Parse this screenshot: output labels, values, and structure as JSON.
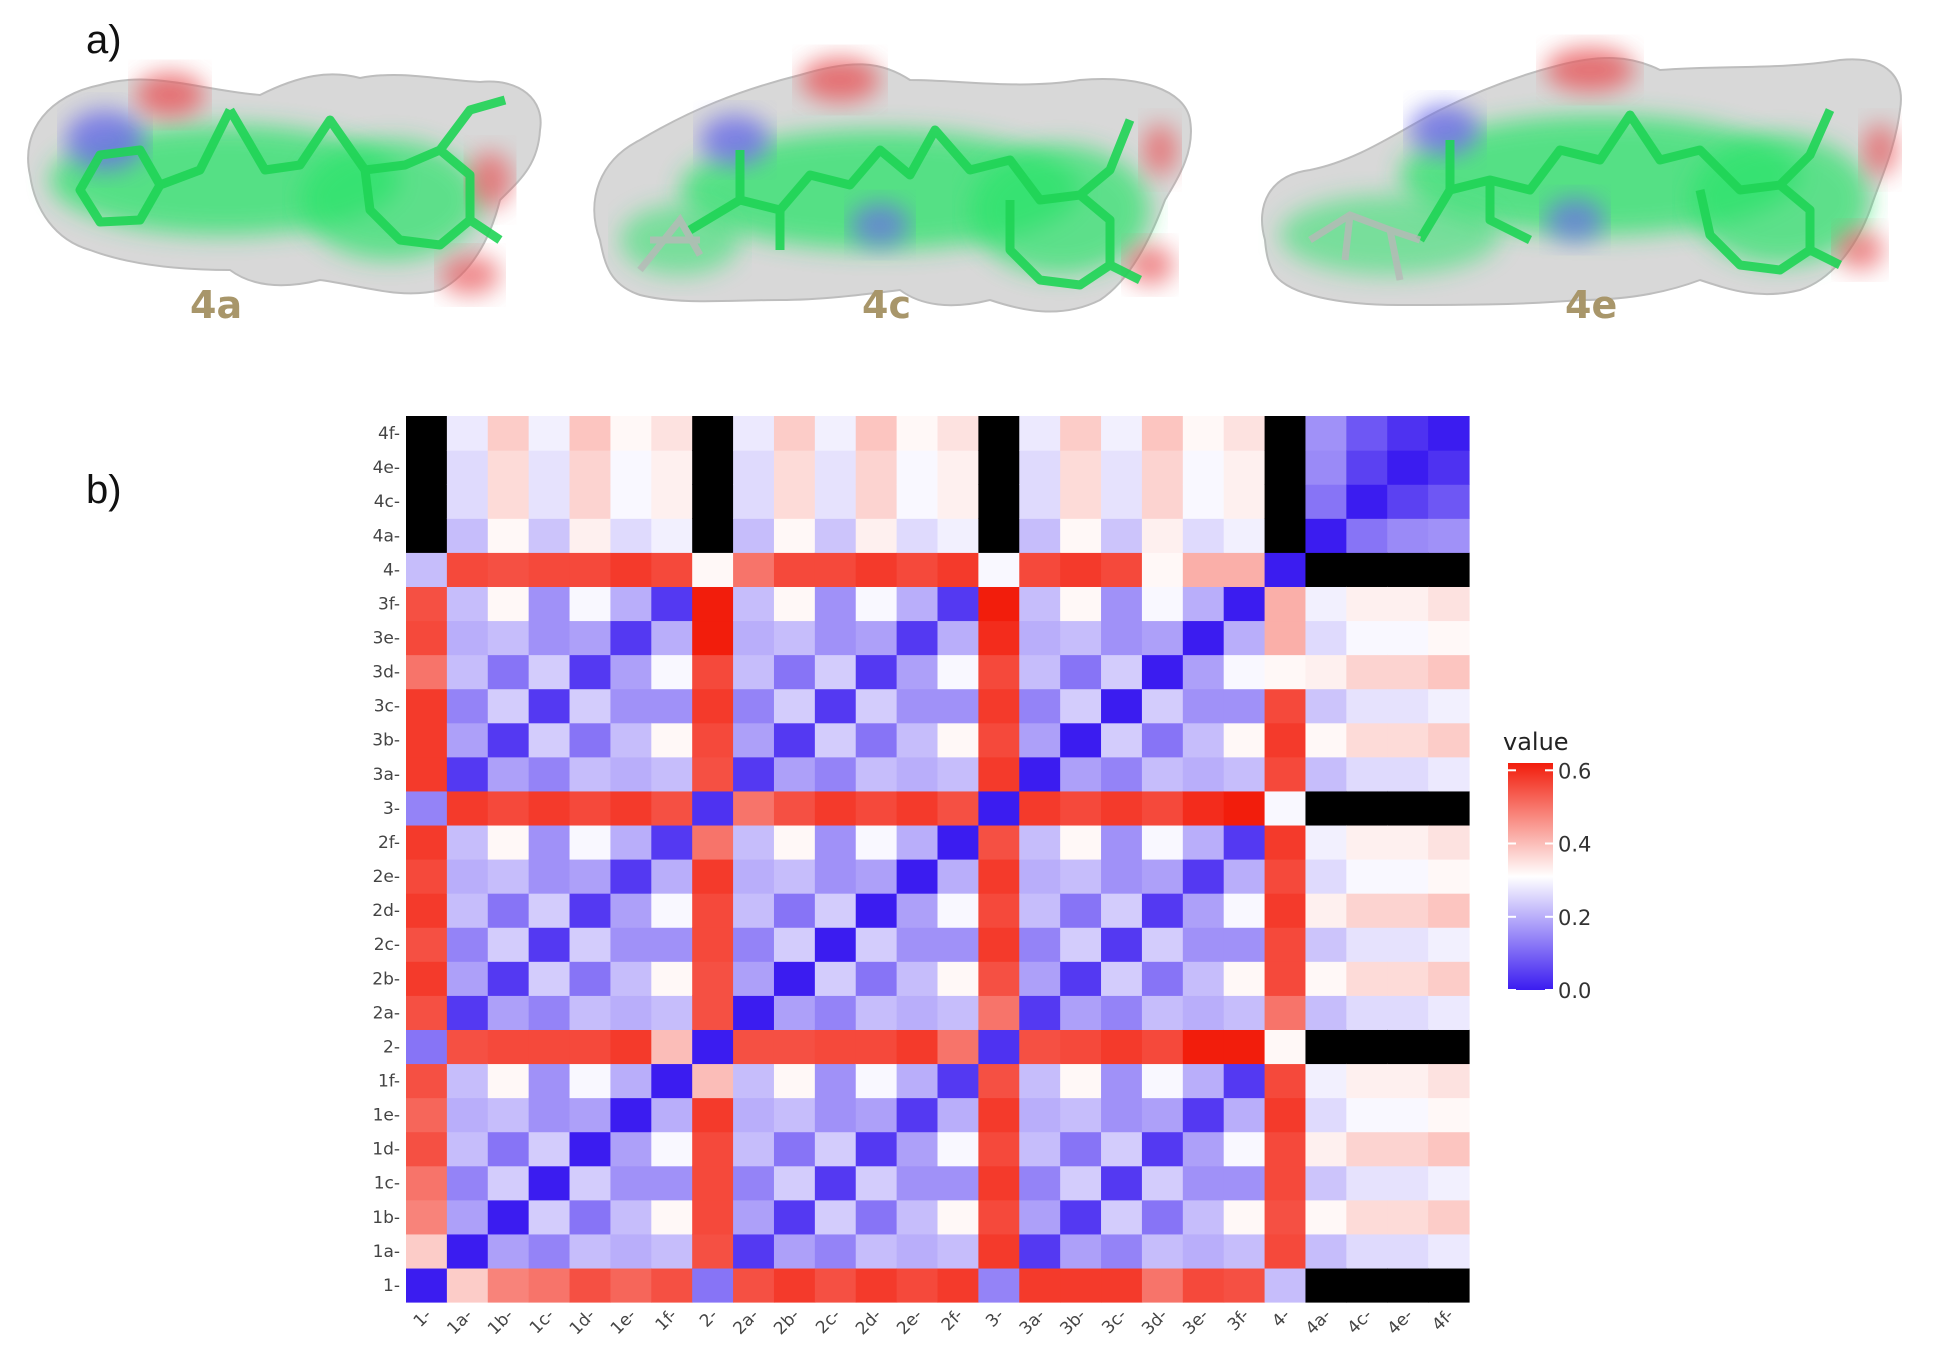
{
  "panels": {
    "a_label": "a)",
    "b_label": "b)"
  },
  "molecules": [
    {
      "label": "4a"
    },
    {
      "label": "4c"
    },
    {
      "label": "4e"
    }
  ],
  "colors": {
    "low": "#3b1cf0",
    "mid": "#ffffff",
    "high": "#f21d0c",
    "molecule_surface": "#d9d9d9",
    "molecule_carbon": "#29e36a",
    "molecule_nitrogen": "#6a6ae8",
    "molecule_oxygen": "#e8565a"
  },
  "chart_data": {
    "type": "heatmap",
    "x_categories": [
      "1",
      "1a",
      "1b",
      "1c",
      "1d",
      "1e",
      "1f",
      "2",
      "2a",
      "2b",
      "2c",
      "2d",
      "2e",
      "2f",
      "3",
      "3a",
      "3b",
      "3c",
      "3d",
      "3e",
      "3f",
      "4",
      "4a",
      "4c",
      "4e",
      "4f"
    ],
    "y_categories": [
      "1",
      "1a",
      "1b",
      "1c",
      "1d",
      "1e",
      "1f",
      "2",
      "2a",
      "2b",
      "2c",
      "2d",
      "2e",
      "2f",
      "3",
      "3a",
      "3b",
      "3c",
      "3d",
      "3e",
      "3f",
      "4",
      "4a",
      "4c",
      "4e",
      "4f"
    ],
    "tick_suffix": "-",
    "legend": {
      "title": "value",
      "ticks": [
        "0.0",
        "0.2",
        "0.4",
        "0.6"
      ],
      "tick_values": [
        0.0,
        0.2,
        0.4,
        0.6
      ],
      "range": [
        0.0,
        0.62
      ],
      "placement": "right"
    },
    "groups": {
      "hub": [
        0,
        7,
        14,
        21
      ],
      "family": [
        1,
        1,
        1,
        1,
        1,
        1,
        1,
        2,
        2,
        2,
        2,
        2,
        2,
        2,
        3,
        3,
        3,
        3,
        3,
        3,
        3,
        4,
        4,
        4,
        4,
        4
      ],
      "variant": [
        "h",
        "a",
        "b",
        "c",
        "d",
        "e",
        "f",
        "h",
        "a",
        "b",
        "c",
        "d",
        "e",
        "f",
        "h",
        "a",
        "b",
        "c",
        "d",
        "e",
        "f",
        "h",
        "a",
        "c",
        "e",
        "f"
      ]
    },
    "values_note": "",
    "diagonal_value": 0.0,
    "hub_hub": {
      "1-2": 0.12,
      "1-3": 0.14,
      "1-4": 0.22,
      "2-3": 0.03,
      "2-4": 0.32,
      "3-4": 0.3
    },
    "hub_to_member": {
      "1": [
        0.38,
        0.48,
        0.5,
        0.55,
        0.52,
        0.55,
        0.52,
        0.55,
        0.58,
        0.55,
        0.58,
        0.56,
        0.58,
        0.56,
        0.58,
        0.58,
        0.58,
        0.5,
        0.56,
        0.55,
        0.5
      ],
      "2": [
        0.5,
        0.55,
        0.56,
        0.56,
        0.56,
        0.58,
        0.4,
        0.55,
        0.55,
        0.56,
        0.56,
        0.58,
        0.5,
        0.55,
        0.55,
        0.56,
        0.58,
        0.56,
        0.62,
        0.62,
        0.62
      ],
      "3": [
        0.5,
        0.58,
        0.56,
        0.58,
        0.56,
        0.58,
        0.55,
        0.58,
        0.5,
        0.55,
        0.58,
        0.56,
        0.58,
        0.55,
        0.58,
        0.56,
        0.58,
        0.56,
        0.6,
        0.62,
        0.62
      ],
      "4": [
        0.5,
        0.56,
        0.55,
        0.56,
        0.56,
        0.58,
        0.56,
        0.58,
        0.5,
        0.56,
        0.56,
        0.58,
        0.56,
        0.58,
        0.56,
        0.56,
        0.58,
        0.56,
        0.32,
        0.42,
        0.42
      ]
    },
    "variant_pair": {
      "same": 0.0,
      "a-b": 0.18,
      "a-c": 0.14,
      "a-d": 0.22,
      "a-e": 0.2,
      "a-f": 0.22,
      "b-c": 0.24,
      "b-d": 0.12,
      "b-e": 0.22,
      "b-f": 0.32,
      "c-d": 0.24,
      "c-e": 0.16,
      "c-f": 0.16,
      "d-e": 0.18,
      "d-f": 0.3,
      "e-f": 0.2
    },
    "family4_block": {
      "a-c": 0.12,
      "a-e": 0.15,
      "a-f": 0.16,
      "c-e": 0.05,
      "c-f": 0.08,
      "e-f": 0.03
    }
  }
}
